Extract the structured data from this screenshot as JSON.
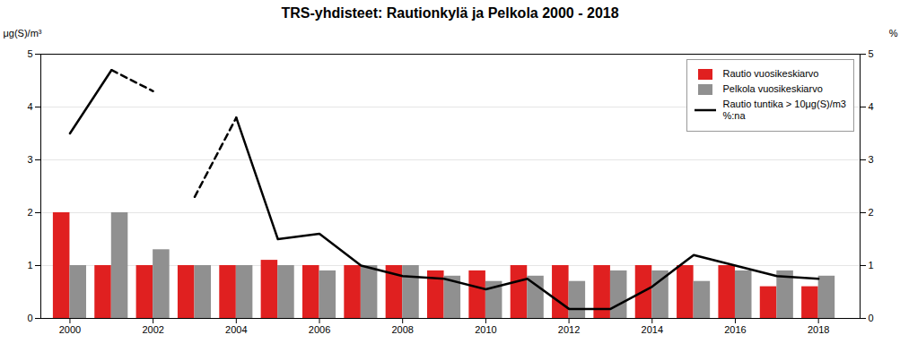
{
  "chart_data": {
    "type": "bar",
    "title": "TRS-yhdisteet: Rautionkylä ja Pelkola 2000 - 2018",
    "ylabel": "μg(S)/m³",
    "y2label": "%",
    "x": [
      2000,
      2001,
      2002,
      2003,
      2004,
      2005,
      2006,
      2007,
      2008,
      2009,
      2010,
      2011,
      2012,
      2013,
      2014,
      2015,
      2016,
      2017,
      2018
    ],
    "xlim": [
      1999.3,
      2019.0
    ],
    "xticks": [
      2000,
      2002,
      2004,
      2006,
      2008,
      2010,
      2012,
      2014,
      2016,
      2018
    ],
    "ylim": [
      0,
      5
    ],
    "yticks": [
      0,
      1,
      2,
      3,
      4,
      5
    ],
    "y2lim": [
      0,
      5
    ],
    "y2ticks": [
      0,
      1,
      2,
      3,
      4,
      5
    ],
    "grid": true,
    "legend": "upper right",
    "series": [
      {
        "name": "Rautio vuosikeskiarvo",
        "type": "bar",
        "color": "#e02020",
        "values": [
          2.0,
          1.0,
          1.0,
          1.0,
          1.0,
          1.1,
          1.0,
          1.0,
          1.0,
          0.9,
          0.9,
          1.0,
          1.0,
          1.0,
          1.0,
          1.0,
          1.0,
          0.6,
          0.6
        ]
      },
      {
        "name": "Pelkola vuosikeskiarvo",
        "type": "bar",
        "color": "#909090",
        "values": [
          1.0,
          2.0,
          1.3,
          1.0,
          1.0,
          1.0,
          0.9,
          1.0,
          1.0,
          0.8,
          0.7,
          0.8,
          0.7,
          0.9,
          0.9,
          0.7,
          0.9,
          0.9,
          0.8
        ]
      },
      {
        "name": "Rautio tuntika > 10μg(S)/m3\n%:na",
        "type": "line",
        "axis": "y2",
        "color": "#000000",
        "line_style": "solid",
        "values": [
          3.5,
          4.7,
          null,
          null,
          3.8,
          1.5,
          1.6,
          1.0,
          0.8,
          0.75,
          0.55,
          0.75,
          0.18,
          0.18,
          0.6,
          1.2,
          1.0,
          0.8,
          0.75
        ]
      },
      {
        "type": "line",
        "axis": "y2",
        "color": "#000000",
        "line_style": "dashed",
        "x": [
          2001,
          2002
        ],
        "values": [
          4.7,
          4.3
        ]
      },
      {
        "type": "line",
        "axis": "y2",
        "color": "#000000",
        "line_style": "dashed",
        "x": [
          2003,
          2004
        ],
        "values": [
          2.3,
          3.8
        ]
      }
    ]
  }
}
